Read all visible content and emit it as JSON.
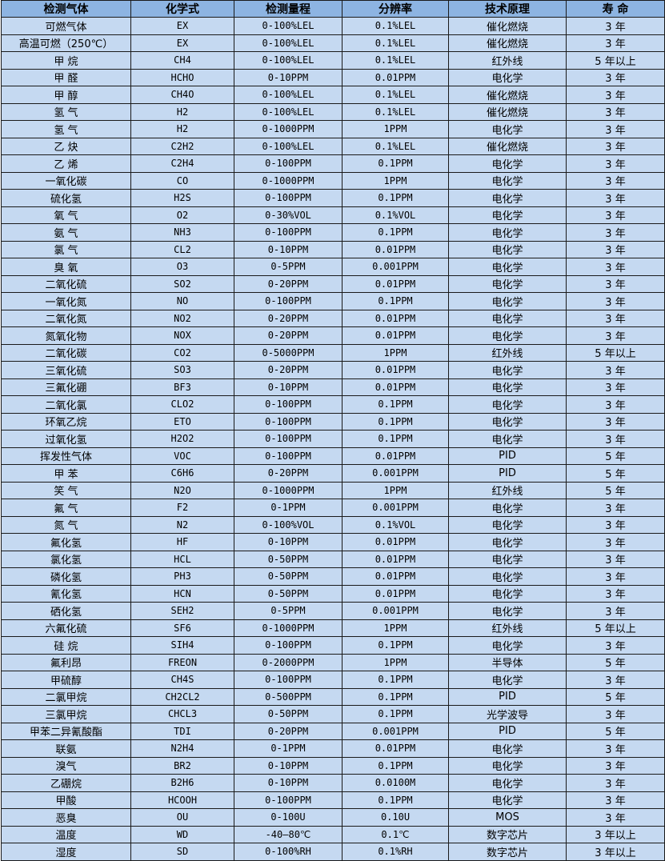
{
  "colors": {
    "header_bg": "#8db4e2",
    "row_bg": "#c5d9f1",
    "border": "#1a1a1a"
  },
  "table": {
    "headers": [
      "检测气体",
      "化学式",
      "检测量程",
      "分辨率",
      "技术原理",
      "寿 命"
    ],
    "rows": [
      [
        "可燃气体",
        "EX",
        "0-100%LEL",
        "0.1%LEL",
        "催化燃烧",
        "3 年"
      ],
      [
        "高温可燃（250℃）",
        "EX",
        "0-100%LEL",
        "0.1%LEL",
        "催化燃烧",
        "3 年"
      ],
      [
        "甲 烷",
        "CH4",
        "0-100%LEL",
        "0.1%LEL",
        "红外线",
        "5 年以上"
      ],
      [
        "甲 醛",
        "HCHO",
        "0-10PPM",
        "0.01PPM",
        "电化学",
        "3 年"
      ],
      [
        "甲 醇",
        "CH4O",
        "0-100%LEL",
        "0.1%LEL",
        "催化燃烧",
        "3 年"
      ],
      [
        "氢 气",
        "H2",
        "0-100%LEL",
        "0.1%LEL",
        "催化燃烧",
        "3 年"
      ],
      [
        "氢 气",
        "H2",
        "0-1000PPM",
        "1PPM",
        "电化学",
        "3 年"
      ],
      [
        "乙 炔",
        "C2H2",
        "0-100%LEL",
        "0.1%LEL",
        "催化燃烧",
        "3 年"
      ],
      [
        "乙 烯",
        "C2H4",
        "0-100PPM",
        "0.1PPM",
        "电化学",
        "3 年"
      ],
      [
        "一氧化碳",
        "CO",
        "0-1000PPM",
        "1PPM",
        "电化学",
        "3 年"
      ],
      [
        "硫化氢",
        "H2S",
        "0-100PPM",
        "0.1PPM",
        "电化学",
        "3 年"
      ],
      [
        "氧 气",
        "O2",
        "0-30%VOL",
        "0.1%VOL",
        "电化学",
        "3 年"
      ],
      [
        "氨 气",
        "NH3",
        "0-100PPM",
        "0.1PPM",
        "电化学",
        "3 年"
      ],
      [
        "氯 气",
        "CL2",
        "0-10PPM",
        "0.01PPM",
        "电化学",
        "3 年"
      ],
      [
        "臭 氧",
        "O3",
        "0-5PPM",
        "0.001PPM",
        "电化学",
        "3 年"
      ],
      [
        "二氧化硫",
        "SO2",
        "0-20PPM",
        "0.01PPM",
        "电化学",
        "3 年"
      ],
      [
        "一氧化氮",
        "NO",
        "0-100PPM",
        "0.1PPM",
        "电化学",
        "3 年"
      ],
      [
        "二氧化氮",
        "NO2",
        "0-20PPM",
        "0.01PPM",
        "电化学",
        "3 年"
      ],
      [
        "氮氧化物",
        "NOX",
        "0-20PPM",
        "0.01PPM",
        "电化学",
        "3 年"
      ],
      [
        "二氧化碳",
        "CO2",
        "0-5000PPM",
        "1PPM",
        "红外线",
        "5 年以上"
      ],
      [
        "三氧化硫",
        "SO3",
        "0-20PPM",
        "0.01PPM",
        "电化学",
        "3 年"
      ],
      [
        "三氟化硼",
        "BF3",
        "0-10PPM",
        "0.01PPM",
        "电化学",
        "3 年"
      ],
      [
        "二氧化氯",
        "CLO2",
        "0-100PPM",
        "0.1PPM",
        "电化学",
        "3 年"
      ],
      [
        "环氧乙烷",
        "ETO",
        "0-100PPM",
        "0.1PPM",
        "电化学",
        "3 年"
      ],
      [
        "过氧化氢",
        "H2O2",
        "0-100PPM",
        "0.1PPM",
        "电化学",
        "3 年"
      ],
      [
        "挥发性气体",
        "VOC",
        "0-100PPM",
        "0.01PPM",
        "PID",
        "5 年"
      ],
      [
        "甲 苯",
        "C6H6",
        "0-20PPM",
        "0.001PPM",
        "PID",
        "5 年"
      ],
      [
        "笑 气",
        "N2O",
        "0-1000PPM",
        "1PPM",
        "红外线",
        "5 年"
      ],
      [
        "氟 气",
        "F2",
        "0-1PPM",
        "0.001PPM",
        "电化学",
        "3 年"
      ],
      [
        "氮 气",
        "N2",
        "0-100%VOL",
        "0.1%VOL",
        "电化学",
        "3 年"
      ],
      [
        "氟化氢",
        "HF",
        "0-10PPM",
        "0.01PPM",
        "电化学",
        "3 年"
      ],
      [
        "氯化氢",
        "HCL",
        "0-50PPM",
        "0.01PPM",
        "电化学",
        "3 年"
      ],
      [
        "磷化氢",
        "PH3",
        "0-50PPM",
        "0.01PPM",
        "电化学",
        "3 年"
      ],
      [
        "氰化氢",
        "HCN",
        "0-50PPM",
        "0.01PPM",
        "电化学",
        "3 年"
      ],
      [
        "硒化氢",
        "SEH2",
        "0-5PPM",
        "0.001PPM",
        "电化学",
        "3 年"
      ],
      [
        "六氟化硫",
        "SF6",
        "0-1000PPM",
        "1PPM",
        "红外线",
        "5 年以上"
      ],
      [
        "硅 烷",
        "SIH4",
        "0-100PPM",
        "0.1PPM",
        "电化学",
        "3 年"
      ],
      [
        "氟利昂",
        "FREON",
        "0-2000PPM",
        "1PPM",
        "半导体",
        "5 年"
      ],
      [
        "甲硫醇",
        "CH4S",
        "0-100PPM",
        "0.1PPM",
        "电化学",
        "3 年"
      ],
      [
        "二氯甲烷",
        "CH2CL2",
        "0-500PPM",
        "0.1PPM",
        "PID",
        "5 年"
      ],
      [
        "三氯甲烷",
        "CHCL3",
        "0-50PPM",
        "0.1PPM",
        "光学波导",
        "3 年"
      ],
      [
        "甲苯二异氰酸酯",
        "TDI",
        "0-20PPM",
        "0.001PPM",
        "PID",
        "5 年"
      ],
      [
        "联氨",
        "N2H4",
        "0-1PPM",
        "0.01PPM",
        "电化学",
        "3 年"
      ],
      [
        "溴气",
        "BR2",
        "0-10PPM",
        "0.1PPM",
        "电化学",
        "3 年"
      ],
      [
        "乙硼烷",
        "B2H6",
        "0-10PPM",
        "0.0100M",
        "电化学",
        "3 年"
      ],
      [
        "甲酸",
        "HCOOH",
        "0-100PPM",
        "0.1PPM",
        "电化学",
        "3 年"
      ],
      [
        "恶臭",
        "OU",
        "0-100U",
        "0.10U",
        "MOS",
        "3 年"
      ],
      [
        "温度",
        "WD",
        "-40—80℃",
        "0.1℃",
        "数字芯片",
        "3 年以上"
      ],
      [
        "湿度",
        "SD",
        "0-100%RH",
        "0.1%RH",
        "数字芯片",
        "3 年以上"
      ]
    ]
  }
}
